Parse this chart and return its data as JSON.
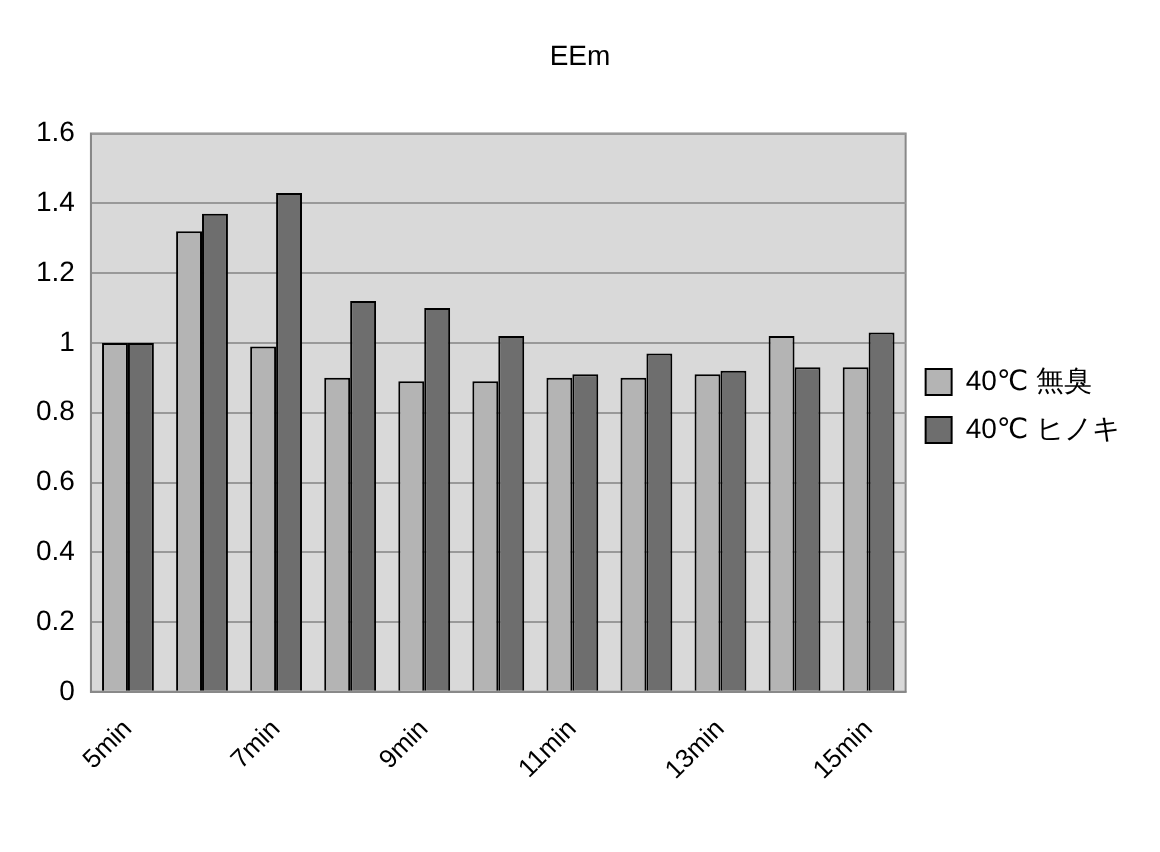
{
  "chart_data": {
    "type": "bar",
    "title": "EEm",
    "categories": [
      "5min",
      null,
      "7min",
      null,
      "9min",
      null,
      "11min",
      null,
      "13min",
      null,
      "15min"
    ],
    "series": [
      {
        "name": "40℃ 無臭",
        "color": "#b4b4b4",
        "values": [
          1.0,
          1.32,
          0.99,
          0.9,
          0.89,
          0.89,
          0.9,
          0.9,
          0.91,
          1.02,
          0.93
        ]
      },
      {
        "name": "40℃ ヒノキ",
        "color": "#6e6e6e",
        "values": [
          1.0,
          1.37,
          1.43,
          1.12,
          1.1,
          1.02,
          0.91,
          0.97,
          0.92,
          0.93,
          1.03
        ]
      }
    ],
    "ylim": [
      0,
      1.6
    ],
    "yticks": [
      0,
      0.2,
      0.4,
      0.6,
      0.8,
      1,
      1.2,
      1.4,
      1.6
    ],
    "grid": "y",
    "legend": "right"
  }
}
